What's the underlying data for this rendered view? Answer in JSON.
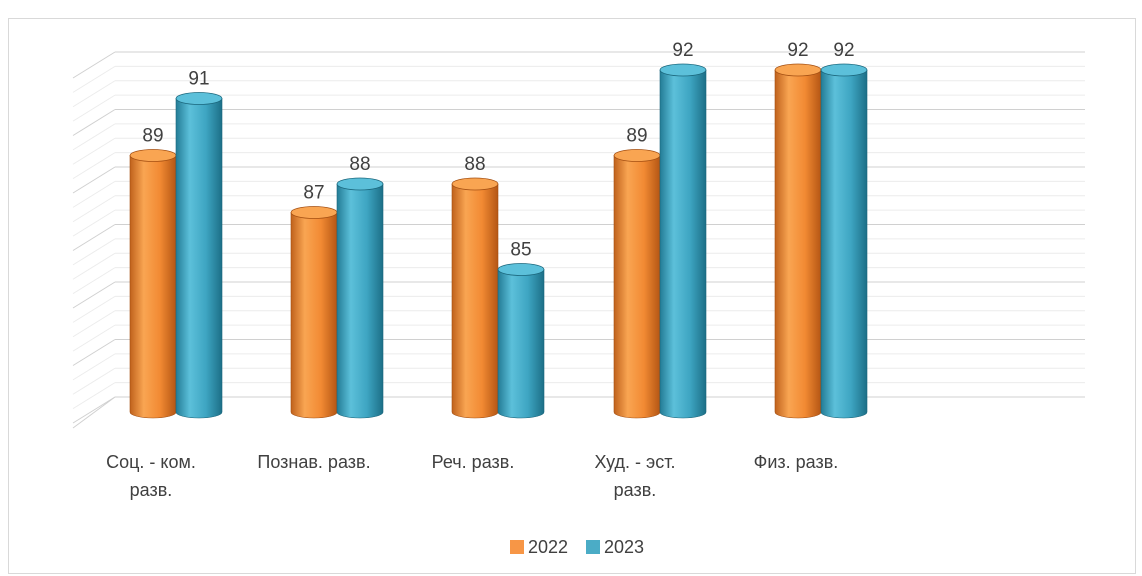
{
  "chart_data": {
    "type": "bar",
    "categories": [
      [
        "Соц. - ком.",
        "разв."
      ],
      [
        "Познав. разв."
      ],
      [
        "Реч. разв."
      ],
      [
        "Худ. - эст.",
        "разв."
      ],
      [
        "Физ. разв."
      ]
    ],
    "series": [
      {
        "name": "2022",
        "values": [
          89,
          87,
          88,
          89,
          92
        ],
        "color": "#f79646"
      },
      {
        "name": "2023",
        "values": [
          91,
          88,
          85,
          92,
          92
        ],
        "color": "#4bacc6"
      }
    ],
    "ylim": [
      80,
      92
    ],
    "grid": true,
    "legend_position": "bottom",
    "style": "3d-cylinder"
  }
}
